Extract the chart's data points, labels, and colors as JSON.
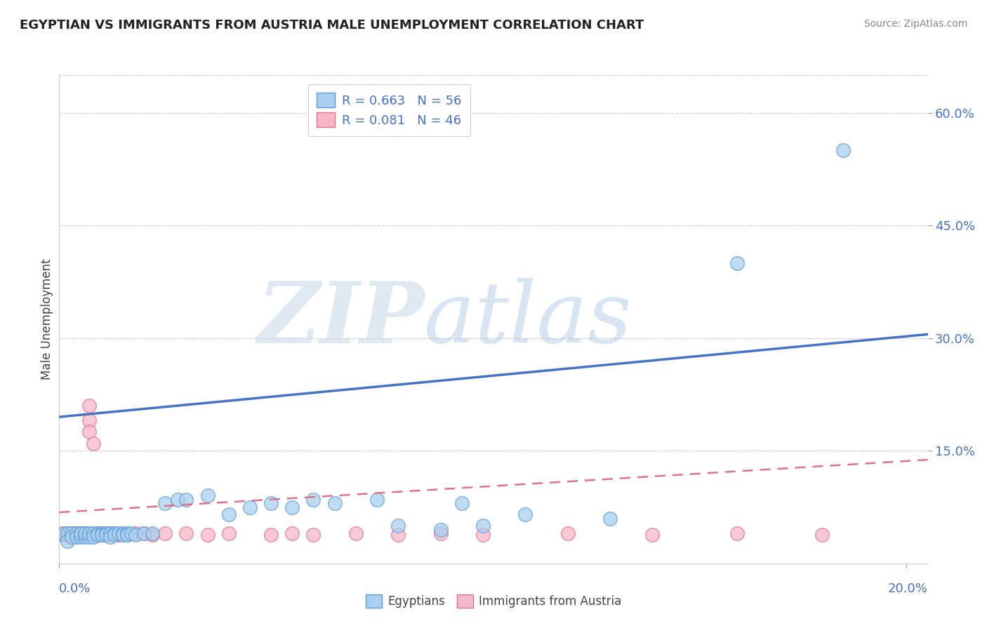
{
  "title": "EGYPTIAN VS IMMIGRANTS FROM AUSTRIA MALE UNEMPLOYMENT CORRELATION CHART",
  "source": "Source: ZipAtlas.com",
  "ylabel": "Male Unemployment",
  "watermark_zip": "ZIP",
  "watermark_atlas": "atlas",
  "xlim": [
    0.0,
    0.205
  ],
  "ylim": [
    0.0,
    0.65
  ],
  "y_tick_values": [
    0.15,
    0.3,
    0.45,
    0.6
  ],
  "y_tick_labels": [
    "15.0%",
    "30.0%",
    "45.0%",
    "60.0%"
  ],
  "x_tick_values": [
    0.0,
    0.2
  ],
  "x_tick_labels": [
    "0.0%",
    "20.0%"
  ],
  "legend_text1": "R = 0.663   N = 56",
  "legend_text2": "R = 0.081   N = 46",
  "legend_label1": "Egyptians",
  "legend_label2": "Immigrants from Austria",
  "color_blue_fill": "#aacfee",
  "color_blue_edge": "#5b9bd5",
  "color_pink_fill": "#f4b8c8",
  "color_pink_edge": "#e07090",
  "color_blue_line": "#4472c4",
  "color_pink_line": "#e07090",
  "background": "#ffffff",
  "title_color": "#222222",
  "source_color": "#888888",
  "axis_label_color": "#444444",
  "tick_color": "#4472c4",
  "grid_color": "#cccccc",
  "blue_scatter_x": [
    0.001,
    0.002,
    0.002,
    0.003,
    0.003,
    0.004,
    0.004,
    0.005,
    0.005,
    0.005,
    0.006,
    0.006,
    0.006,
    0.007,
    0.007,
    0.007,
    0.008,
    0.008,
    0.009,
    0.009,
    0.01,
    0.01,
    0.011,
    0.011,
    0.012,
    0.012,
    0.013,
    0.013,
    0.014,
    0.015,
    0.015,
    0.016,
    0.016,
    0.017,
    0.018,
    0.02,
    0.022,
    0.025,
    0.028,
    0.03,
    0.035,
    0.04,
    0.045,
    0.05,
    0.055,
    0.06,
    0.065,
    0.075,
    0.08,
    0.09,
    0.095,
    0.1,
    0.11,
    0.13,
    0.16,
    0.185
  ],
  "blue_scatter_y": [
    0.04,
    0.04,
    0.03,
    0.04,
    0.035,
    0.04,
    0.035,
    0.04,
    0.035,
    0.04,
    0.04,
    0.035,
    0.04,
    0.04,
    0.035,
    0.04,
    0.04,
    0.035,
    0.04,
    0.038,
    0.04,
    0.038,
    0.04,
    0.038,
    0.04,
    0.035,
    0.04,
    0.038,
    0.04,
    0.04,
    0.038,
    0.04,
    0.038,
    0.04,
    0.038,
    0.04,
    0.04,
    0.08,
    0.085,
    0.085,
    0.09,
    0.065,
    0.075,
    0.08,
    0.075,
    0.085,
    0.08,
    0.085,
    0.05,
    0.045,
    0.08,
    0.05,
    0.065,
    0.06,
    0.4,
    0.55
  ],
  "pink_scatter_x": [
    0.001,
    0.001,
    0.002,
    0.002,
    0.003,
    0.003,
    0.003,
    0.004,
    0.004,
    0.005,
    0.005,
    0.005,
    0.006,
    0.006,
    0.007,
    0.007,
    0.007,
    0.008,
    0.008,
    0.009,
    0.01,
    0.01,
    0.011,
    0.012,
    0.013,
    0.014,
    0.015,
    0.016,
    0.018,
    0.02,
    0.022,
    0.025,
    0.03,
    0.035,
    0.04,
    0.05,
    0.055,
    0.06,
    0.07,
    0.08,
    0.09,
    0.1,
    0.12,
    0.14,
    0.16,
    0.18
  ],
  "pink_scatter_y": [
    0.04,
    0.038,
    0.04,
    0.038,
    0.04,
    0.038,
    0.04,
    0.038,
    0.04,
    0.038,
    0.04,
    0.038,
    0.04,
    0.038,
    0.19,
    0.21,
    0.175,
    0.16,
    0.038,
    0.04,
    0.04,
    0.038,
    0.04,
    0.04,
    0.04,
    0.038,
    0.04,
    0.038,
    0.04,
    0.04,
    0.038,
    0.04,
    0.04,
    0.038,
    0.04,
    0.038,
    0.04,
    0.038,
    0.04,
    0.038,
    0.04,
    0.038,
    0.04,
    0.038,
    0.04,
    0.038
  ],
  "blue_line_x": [
    0.0,
    0.205
  ],
  "blue_line_y": [
    0.195,
    0.305
  ],
  "pink_line_x": [
    0.0,
    0.205
  ],
  "pink_line_y": [
    0.068,
    0.138
  ]
}
